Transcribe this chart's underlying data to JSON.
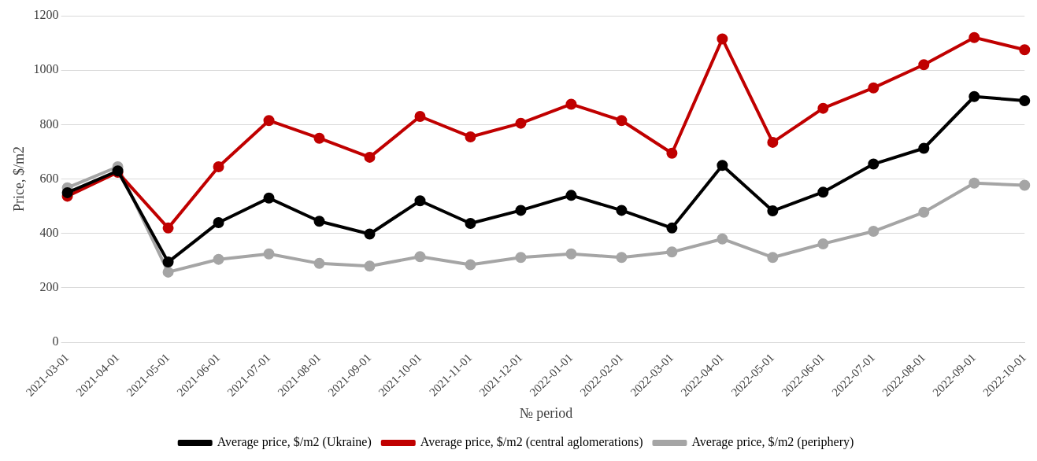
{
  "chart_data": {
    "type": "line",
    "xlabel": "№ period",
    "ylabel": "Price, $/m2",
    "categories": [
      "2021-03-01",
      "2021-04-01",
      "2021-05-01",
      "2021-06-01",
      "2021-07-01",
      "2021-08-01",
      "2021-09-01",
      "2021-10-01",
      "2021-11-01",
      "2021-12-01",
      "2022-01-01",
      "2022-02-01",
      "2022-03-01",
      "2022-04-01",
      "2022-05-01",
      "2022-06-01",
      "2022-07-01",
      "2022-08-01",
      "2022-09-01",
      "2022-10-01"
    ],
    "series": [
      {
        "name": "Average price, $/m2 (Ukraine)",
        "color": "#000000",
        "values": [
          550,
          630,
          295,
          440,
          530,
          445,
          398,
          520,
          437,
          485,
          540,
          485,
          420,
          650,
          483,
          552,
          655,
          713,
          903,
          888
        ]
      },
      {
        "name": "Average price, $/m2 (central aglomerations)",
        "color": "#c00000",
        "values": [
          537,
          625,
          420,
          645,
          815,
          750,
          680,
          830,
          755,
          805,
          875,
          815,
          695,
          1115,
          735,
          860,
          935,
          1020,
          1120,
          1075
        ]
      },
      {
        "name": "Average price, $/m2 (periphery)",
        "color": "#a5a5a5",
        "values": [
          568,
          645,
          258,
          305,
          325,
          290,
          280,
          315,
          285,
          312,
          325,
          312,
          332,
          380,
          312,
          362,
          408,
          478,
          585,
          577
        ]
      }
    ],
    "ylim": [
      0,
      1200
    ],
    "yticks": [
      0,
      200,
      400,
      600,
      800,
      1000,
      1200
    ],
    "grid": "y",
    "legend": "bottom",
    "marker": "circle",
    "line_style": "solid"
  }
}
